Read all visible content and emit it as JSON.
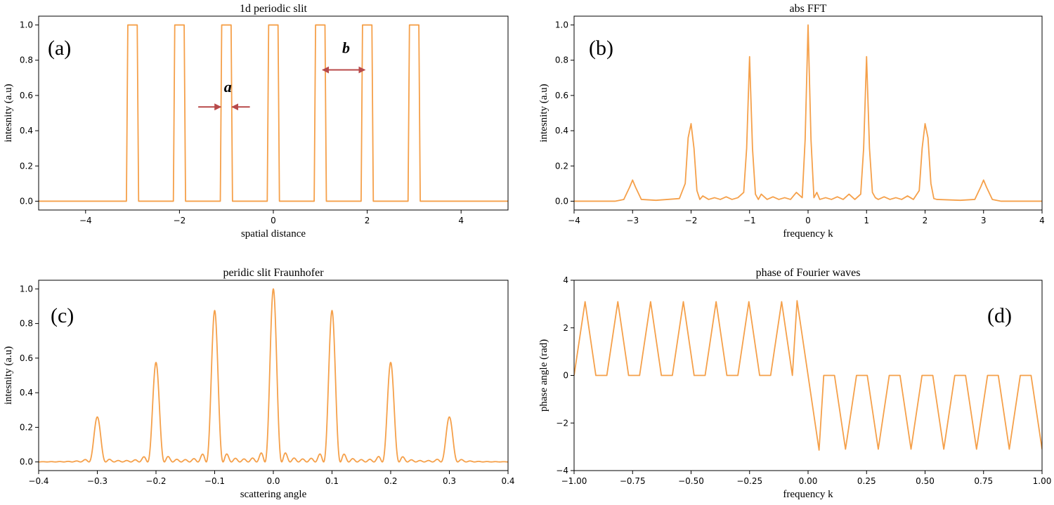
{
  "colors": {
    "line": "#f5a04a",
    "arrow": "#b84a4a"
  },
  "chart_data": [
    {
      "type": "line",
      "panel_label": "(a)",
      "title": "1d periodic slit",
      "xlabel": "spatial distance",
      "ylabel": "intesnity (a.u)",
      "xlim": [
        -5,
        5
      ],
      "ylim": [
        -0.05,
        1.05
      ],
      "xticks": [
        -4,
        -2,
        0,
        2,
        4
      ],
      "xtick_labels": [
        "−4",
        "−2",
        "0",
        "2",
        "4"
      ],
      "yticks": [
        0.0,
        0.2,
        0.4,
        0.6,
        0.8,
        1.0
      ],
      "ytick_labels": [
        "0.0",
        "0.2",
        "0.4",
        "0.6",
        "0.8",
        "1.0"
      ],
      "grid": false,
      "series": [
        {
          "x": [
            -5,
            -3.13,
            -3.1,
            -2.9,
            -2.87,
            -2.13,
            -2.1,
            -1.9,
            -1.87,
            -1.13,
            -1.1,
            -0.9,
            -0.87,
            -0.13,
            -0.1,
            0.1,
            0.13,
            0.87,
            0.9,
            1.1,
            1.13,
            1.87,
            1.9,
            2.1,
            2.13,
            2.87,
            2.9,
            3.1,
            3.13,
            5
          ],
          "y": [
            0,
            0,
            1,
            1,
            0,
            0,
            1,
            1,
            0,
            0,
            1,
            1,
            0,
            0,
            1,
            1,
            0,
            0,
            1,
            1,
            0,
            0,
            1,
            1,
            0,
            0,
            1,
            1,
            0,
            0
          ]
        }
      ],
      "annotations": [
        {
          "text": "a",
          "x": -0.97,
          "y": 0.62
        },
        {
          "text": "b",
          "x": 1.55,
          "y": 0.84
        }
      ],
      "arrows": [
        {
          "x1": -1.6,
          "y1": 0.535,
          "x2": -1.12,
          "y2": 0.535
        },
        {
          "x1": -0.5,
          "y1": 0.535,
          "x2": -0.88,
          "y2": 0.535
        },
        {
          "x1": 1.05,
          "y1": 0.745,
          "x2": 1.95,
          "y2": 0.745,
          "double": true
        }
      ]
    },
    {
      "type": "line",
      "panel_label": "(b)",
      "title": "abs FFT",
      "xlabel": "frequency k",
      "ylabel": "intesnity (a.u)",
      "xlim": [
        -4,
        4
      ],
      "ylim": [
        -0.05,
        1.05
      ],
      "xticks": [
        -4,
        -3,
        -2,
        -1,
        0,
        1,
        2,
        3,
        4
      ],
      "xtick_labels": [
        "−4",
        "−3",
        "−2",
        "−1",
        "0",
        "1",
        "2",
        "3",
        "4"
      ],
      "yticks": [
        0.0,
        0.2,
        0.4,
        0.6,
        0.8,
        1.0
      ],
      "ytick_labels": [
        "0.0",
        "0.2",
        "0.4",
        "0.6",
        "0.8",
        "1.0"
      ],
      "grid": false,
      "series": [
        {
          "x": [
            -4,
            -3.3,
            -3.15,
            -3.05,
            -3.0,
            -2.95,
            -2.85,
            -2.6,
            -2.2,
            -2.1,
            -2.05,
            -2.0,
            -1.95,
            -1.9,
            -1.85,
            -1.8,
            -1.7,
            -1.6,
            -1.5,
            -1.4,
            -1.3,
            -1.2,
            -1.1,
            -1.05,
            -1.0,
            -0.95,
            -0.9,
            -0.85,
            -0.8,
            -0.7,
            -0.6,
            -0.5,
            -0.4,
            -0.3,
            -0.2,
            -0.1,
            -0.05,
            0.0,
            0.05,
            0.1,
            0.15,
            0.2,
            0.3,
            0.4,
            0.5,
            0.6,
            0.7,
            0.8,
            0.9,
            0.95,
            1.0,
            1.05,
            1.1,
            1.15,
            1.2,
            1.3,
            1.4,
            1.5,
            1.6,
            1.7,
            1.8,
            1.9,
            1.95,
            2.0,
            2.05,
            2.1,
            2.15,
            2.2,
            2.6,
            2.85,
            2.95,
            3.0,
            3.05,
            3.15,
            3.3,
            4
          ],
          "y": [
            0,
            0,
            0.01,
            0.08,
            0.12,
            0.08,
            0.01,
            0.005,
            0.015,
            0.1,
            0.36,
            0.44,
            0.3,
            0.06,
            0.01,
            0.03,
            0.01,
            0.02,
            0.01,
            0.025,
            0.01,
            0.02,
            0.05,
            0.3,
            0.82,
            0.3,
            0.04,
            0.01,
            0.04,
            0.01,
            0.025,
            0.01,
            0.02,
            0.01,
            0.05,
            0.02,
            0.35,
            1.0,
            0.35,
            0.02,
            0.05,
            0.01,
            0.02,
            0.01,
            0.025,
            0.01,
            0.04,
            0.01,
            0.04,
            0.3,
            0.82,
            0.3,
            0.05,
            0.02,
            0.01,
            0.025,
            0.01,
            0.02,
            0.01,
            0.03,
            0.01,
            0.06,
            0.3,
            0.44,
            0.36,
            0.1,
            0.015,
            0.01,
            0.005,
            0.01,
            0.08,
            0.12,
            0.08,
            0.01,
            0,
            0
          ]
        }
      ]
    },
    {
      "type": "line",
      "panel_label": "(c)",
      "title": "peridic slit Fraunhofer",
      "xlabel": "scattering angle",
      "ylabel": "intesnity (a.u)",
      "xlim": [
        -0.4,
        0.4
      ],
      "ylim": [
        -0.05,
        1.05
      ],
      "xticks": [
        -0.4,
        -0.3,
        -0.2,
        -0.1,
        0.0,
        0.1,
        0.2,
        0.3,
        0.4
      ],
      "xtick_labels": [
        "−0.4",
        "−0.3",
        "−0.2",
        "−0.1",
        "0.0",
        "0.1",
        "0.2",
        "0.3",
        "0.4"
      ],
      "yticks": [
        0.0,
        0.2,
        0.4,
        0.6,
        0.8,
        1.0
      ],
      "ytick_labels": [
        "0.0",
        "0.2",
        "0.4",
        "0.6",
        "0.8",
        "1.0"
      ],
      "grid": false,
      "peaks": [
        {
          "x": -0.3,
          "height": 0.26
        },
        {
          "x": -0.2,
          "height": 0.575
        },
        {
          "x": -0.1,
          "height": 0.875
        },
        {
          "x": 0.0,
          "height": 1.0
        },
        {
          "x": 0.1,
          "height": 0.875
        },
        {
          "x": 0.2,
          "height": 0.575
        },
        {
          "x": 0.3,
          "height": 0.26
        }
      ]
    },
    {
      "type": "line",
      "panel_label": "(d)",
      "title": "phase of Fourier waves",
      "xlabel": "frequency k",
      "ylabel": "phase angle (rad)",
      "xlim": [
        -1.0,
        1.0
      ],
      "ylim": [
        -4,
        4
      ],
      "xticks": [
        -1.0,
        -0.75,
        -0.5,
        -0.25,
        0.0,
        0.25,
        0.5,
        0.75,
        1.0
      ],
      "xtick_labels": [
        "−1.00",
        "−0.75",
        "−0.50",
        "−0.25",
        "0.00",
        "0.25",
        "0.50",
        "0.75",
        "1.00"
      ],
      "yticks": [
        -4,
        -2,
        0,
        2,
        4
      ],
      "ytick_labels": [
        "−4",
        "−2",
        "0",
        "2",
        "4"
      ],
      "grid": false,
      "series": [
        {
          "x": [
            -1.0,
            -0.953,
            -0.907,
            -0.86,
            -0.813,
            -0.767,
            -0.72,
            -0.673,
            -0.627,
            -0.58,
            -0.533,
            -0.487,
            -0.44,
            -0.393,
            -0.347,
            -0.3,
            -0.253,
            -0.207,
            -0.16,
            -0.113,
            -0.067,
            -0.047,
            0.047,
            0.067,
            0.113,
            0.16,
            0.207,
            0.253,
            0.3,
            0.347,
            0.393,
            0.44,
            0.487,
            0.533,
            0.58,
            0.627,
            0.673,
            0.72,
            0.767,
            0.813,
            0.86,
            0.907,
            0.953,
            1.0
          ],
          "y": [
            0,
            3.1,
            0,
            0,
            3.1,
            0,
            0,
            3.1,
            0,
            0,
            3.1,
            0,
            0,
            3.1,
            0,
            0,
            3.1,
            0,
            0,
            3.1,
            0,
            3.14,
            -3.14,
            0,
            0,
            -3.1,
            0,
            0,
            -3.1,
            0,
            0,
            -3.1,
            0,
            0,
            -3.1,
            0,
            0,
            -3.1,
            0,
            0,
            -3.1,
            0,
            0,
            -3.1
          ]
        }
      ]
    }
  ]
}
